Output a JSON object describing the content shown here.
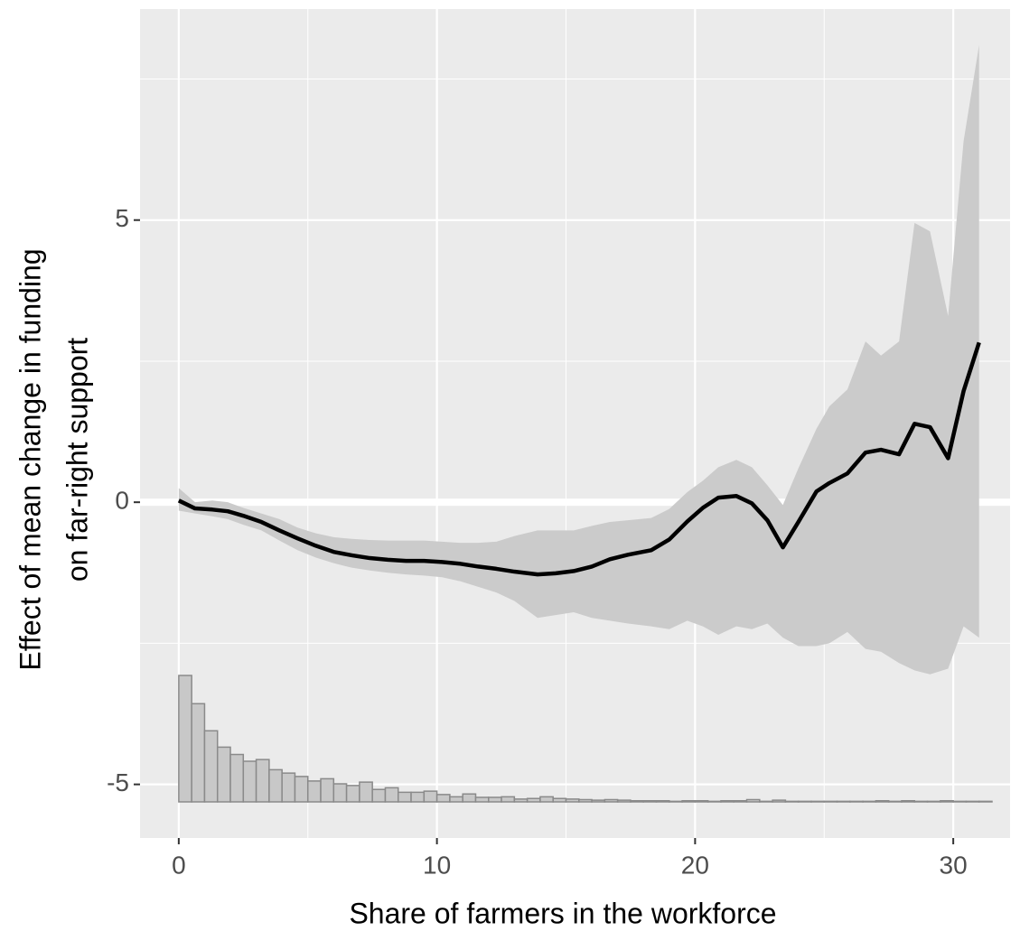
{
  "chart_data": {
    "type": "line",
    "xlabel": "Share of farmers in the workforce",
    "ylabel": [
      "Effect of mean change in funding",
      "on far-right support"
    ],
    "xlim": [
      -1.5,
      32.2
    ],
    "ylim": [
      -5.95,
      8.74
    ],
    "xticks": [
      0,
      10,
      20,
      30
    ],
    "yticks": [
      -5,
      0,
      5
    ],
    "minor_xticks": [
      5,
      15,
      25
    ],
    "minor_yticks": [
      -2.5,
      2.5,
      7.5
    ],
    "grid": true,
    "hline": 0,
    "x": [
      0,
      0.63,
      1.3,
      1.9,
      2.5,
      3.2,
      3.9,
      4.6,
      5.3,
      6.0,
      6.7,
      7.4,
      8.1,
      8.8,
      9.5,
      10.2,
      10.9,
      11.6,
      12.3,
      13.0,
      13.9,
      14.6,
      15.3,
      16.0,
      16.7,
      17.4,
      18.3,
      19.0,
      19.7,
      20.3,
      20.9,
      21.6,
      22.2,
      22.8,
      23.4,
      24.0,
      24.7,
      25.2,
      25.9,
      26.6,
      27.2,
      27.9,
      28.5,
      29.1,
      29.8,
      30.4,
      31.0
    ],
    "series": [
      {
        "color": "#000000",
        "band_color": "#cbcbcb",
        "values": [
          0.03,
          -0.11,
          -0.13,
          -0.16,
          -0.24,
          -0.35,
          -0.5,
          -0.64,
          -0.77,
          -0.88,
          -0.94,
          -0.99,
          -1.02,
          -1.04,
          -1.04,
          -1.06,
          -1.09,
          -1.14,
          -1.18,
          -1.23,
          -1.28,
          -1.26,
          -1.22,
          -1.14,
          -1.01,
          -0.93,
          -0.85,
          -0.66,
          -0.34,
          -0.1,
          0.08,
          0.11,
          -0.02,
          -0.32,
          -0.8,
          -0.35,
          0.19,
          0.34,
          0.51,
          0.88,
          0.93,
          0.85,
          1.39,
          1.33,
          0.78,
          1.97,
          2.83
        ],
        "lower": [
          -0.15,
          -0.2,
          -0.25,
          -0.3,
          -0.4,
          -0.5,
          -0.68,
          -0.85,
          -0.98,
          -1.08,
          -1.16,
          -1.21,
          -1.25,
          -1.28,
          -1.3,
          -1.33,
          -1.4,
          -1.5,
          -1.6,
          -1.75,
          -2.05,
          -2.0,
          -1.95,
          -2.05,
          -2.1,
          -2.15,
          -2.2,
          -2.25,
          -2.1,
          -2.2,
          -2.35,
          -2.2,
          -2.25,
          -2.15,
          -2.4,
          -2.55,
          -2.55,
          -2.5,
          -2.3,
          -2.6,
          -2.65,
          -2.85,
          -2.98,
          -3.05,
          -2.95,
          -2.2,
          -2.4
        ],
        "upper": [
          0.25,
          0.0,
          0.03,
          0.0,
          -0.1,
          -0.2,
          -0.3,
          -0.45,
          -0.55,
          -0.62,
          -0.65,
          -0.67,
          -0.68,
          -0.68,
          -0.68,
          -0.7,
          -0.72,
          -0.72,
          -0.7,
          -0.6,
          -0.5,
          -0.5,
          -0.5,
          -0.42,
          -0.35,
          -0.32,
          -0.28,
          -0.12,
          0.18,
          0.38,
          0.62,
          0.75,
          0.62,
          0.3,
          -0.05,
          0.6,
          1.3,
          1.7,
          2.0,
          2.85,
          2.6,
          2.85,
          4.95,
          4.8,
          3.3,
          6.4,
          8.1
        ]
      }
    ],
    "histogram": {
      "color": "#c8c8c8",
      "edge_color": "#8a8a8a",
      "baseline": -5.31,
      "bins": [
        0,
        0.5,
        1,
        1.5,
        2,
        2.5,
        3,
        3.5,
        4,
        4.5,
        5,
        5.5,
        6,
        6.5,
        7,
        7.5,
        8,
        8.5,
        9,
        9.5,
        10,
        10.5,
        11,
        11.5,
        12,
        12.5,
        13,
        13.5,
        14,
        14.5,
        15,
        15.5,
        16,
        16.5,
        17,
        17.5,
        18,
        18.5,
        19,
        19.5,
        20,
        20.5,
        21,
        21.5,
        22,
        22.5,
        23,
        23.5,
        24,
        24.5,
        25,
        25.5,
        26,
        26.5,
        27,
        27.5,
        28,
        28.5,
        29,
        29.5,
        30,
        30.5,
        31,
        31.5
      ],
      "values": [
        -3.07,
        -3.57,
        -4.05,
        -4.34,
        -4.47,
        -4.59,
        -4.56,
        -4.74,
        -4.8,
        -4.86,
        -4.94,
        -4.9,
        -4.99,
        -5.02,
        -4.96,
        -5.09,
        -5.06,
        -5.14,
        -5.14,
        -5.12,
        -5.18,
        -5.22,
        -5.17,
        -5.23,
        -5.23,
        -5.22,
        -5.26,
        -5.25,
        -5.22,
        -5.25,
        -5.26,
        -5.27,
        -5.28,
        -5.27,
        -5.28,
        -5.29,
        -5.29,
        -5.29,
        -5.3,
        -5.29,
        -5.29,
        -5.3,
        -5.29,
        -5.29,
        -5.27,
        -5.3,
        -5.28,
        -5.3,
        -5.3,
        -5.3,
        -5.3,
        -5.3,
        -5.3,
        -5.3,
        -5.29,
        -5.3,
        -5.29,
        -5.3,
        -5.3,
        -5.29,
        -5.3,
        -5.3,
        -5.3
      ]
    }
  }
}
